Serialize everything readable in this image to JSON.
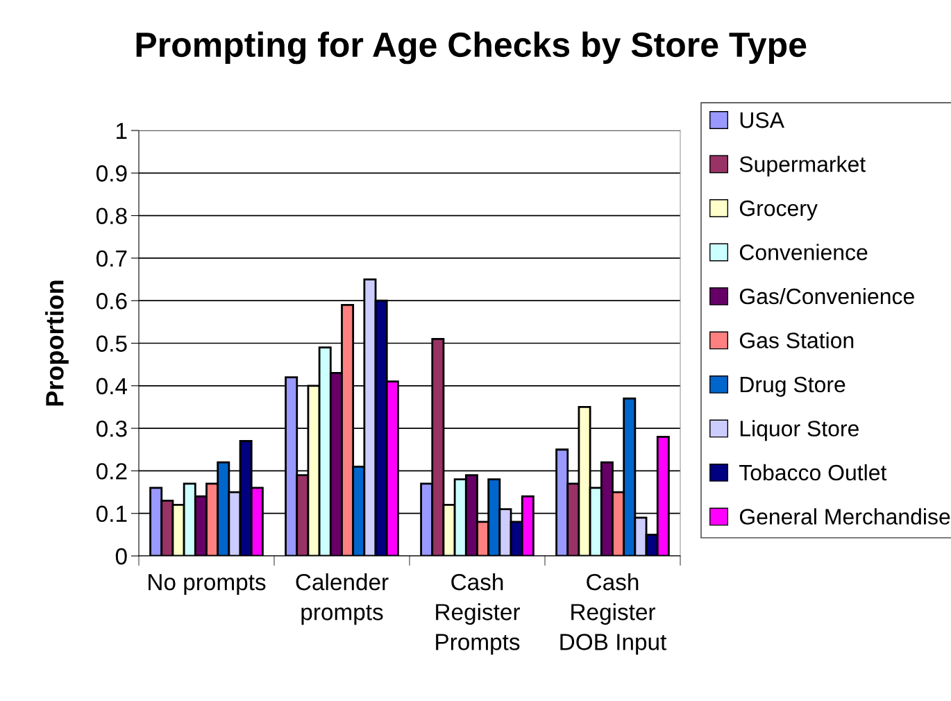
{
  "chart_data": {
    "type": "bar",
    "title": "Prompting for Age Checks by Store Type",
    "ylabel": "Proportion",
    "categories": [
      "No prompts",
      "Calender\nprompts",
      "Cash\nRegister\nPrompts",
      "Cash\nRegister\nDOB Input"
    ],
    "series": [
      {
        "name": "USA",
        "color": "#9999ff",
        "values": [
          0.16,
          0.42,
          0.17,
          0.25
        ]
      },
      {
        "name": "Supermarket",
        "color": "#993366",
        "values": [
          0.13,
          0.19,
          0.51,
          0.17
        ]
      },
      {
        "name": "Grocery",
        "color": "#ffffcc",
        "values": [
          0.12,
          0.4,
          0.12,
          0.35
        ]
      },
      {
        "name": "Convenience",
        "color": "#ccffff",
        "values": [
          0.17,
          0.49,
          0.18,
          0.16
        ]
      },
      {
        "name": "Gas/Convenience",
        "color": "#660066",
        "values": [
          0.14,
          0.43,
          0.19,
          0.22
        ]
      },
      {
        "name": "Gas Station",
        "color": "#ff8080",
        "values": [
          0.17,
          0.59,
          0.08,
          0.15
        ]
      },
      {
        "name": "Drug Store",
        "color": "#0066cc",
        "values": [
          0.22,
          0.21,
          0.18,
          0.37
        ]
      },
      {
        "name": "Liquor Store",
        "color": "#ccccff",
        "values": [
          0.15,
          0.65,
          0.11,
          0.09
        ]
      },
      {
        "name": "Tobacco Outlet",
        "color": "#000080",
        "values": [
          0.27,
          0.6,
          0.08,
          0.05
        ]
      },
      {
        "name": "General Merchandise",
        "color": "#ff00ff",
        "values": [
          0.16,
          0.41,
          0.14,
          0.28
        ]
      }
    ],
    "ylim": [
      0,
      1
    ],
    "yticks": [
      0,
      0.1,
      0.2,
      0.3,
      0.4,
      0.5,
      0.6,
      0.7,
      0.8,
      0.9,
      1
    ],
    "grid": "y",
    "legend": "right"
  }
}
